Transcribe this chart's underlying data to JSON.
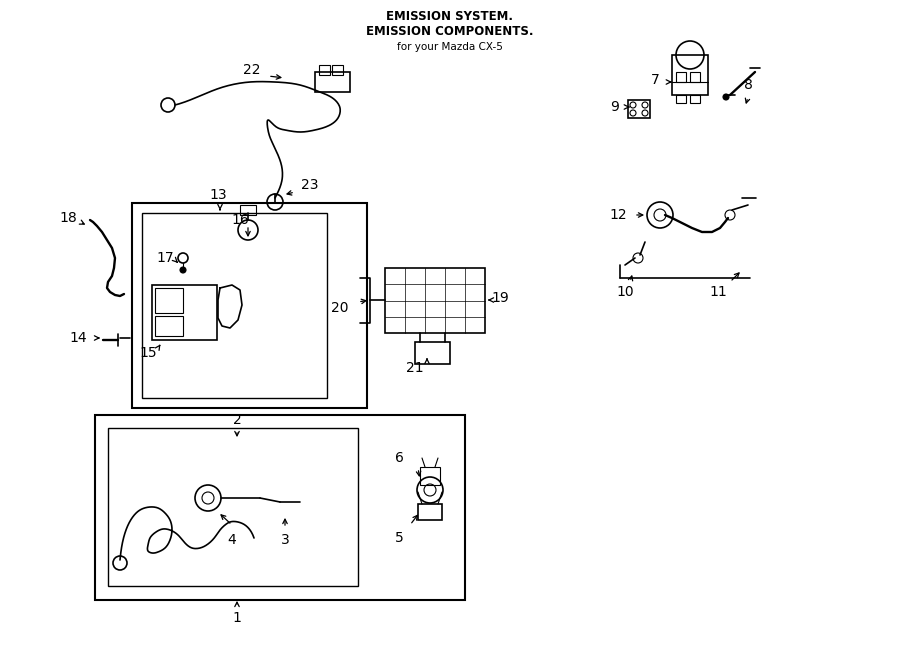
{
  "bg_color": "#ffffff",
  "line_color": "#000000",
  "fig_width": 9.0,
  "fig_height": 6.61,
  "title": "EMISSION COMPONENTS.",
  "subtitle": "EMISSION SYSTEM.",
  "car": "for your Mazda CX-5"
}
